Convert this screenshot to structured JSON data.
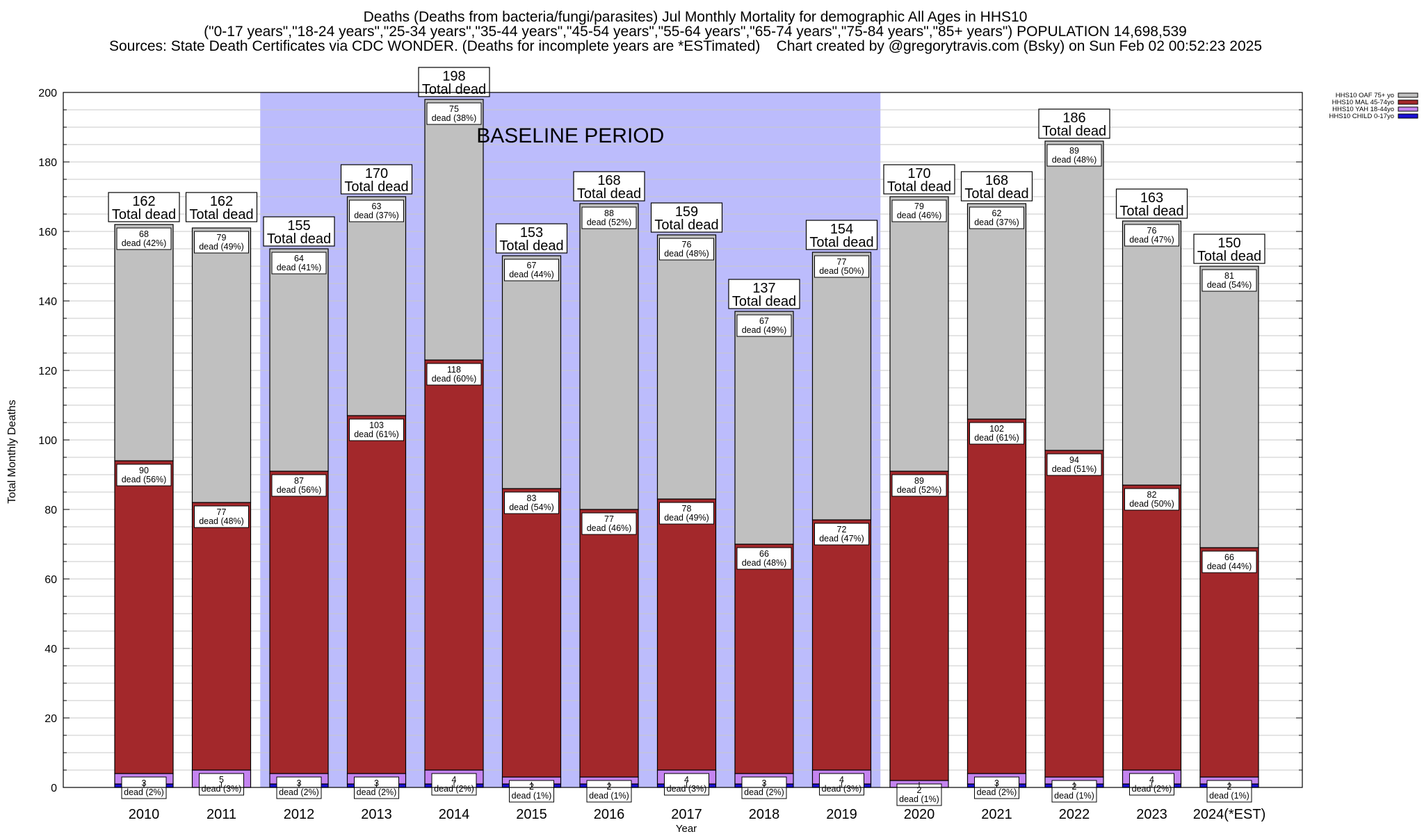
{
  "chart_data": {
    "type": "bar",
    "stacked": true,
    "title_lines": [
      "Deaths (Deaths from bacteria/fungi/parasites) Jul Monthly Mortality for demographic All Ages in HHS10",
      "(\"0-17 years\",\"18-24 years\",\"25-34 years\",\"35-44 years\",\"45-54 years\",\"55-64 years\",\"65-74 years\",\"75-84 years\",\"85+ years\") POPULATION 14,698,539",
      "Sources: State Death Certificates via CDC WONDER. (Deaths for incomplete years are *ESTimated)",
      "Chart created by @gregorytravis.com (Bsky) on Sun Feb 02 00:52:23 2025"
    ],
    "xlabel": "Year",
    "ylabel": "Total Monthly Deaths",
    "ylim": [
      0,
      200
    ],
    "y_ticks": [
      0,
      20,
      40,
      60,
      80,
      100,
      120,
      140,
      160,
      180,
      200
    ],
    "grid": true,
    "legend_position": "top-right",
    "baseline_label": "BASELINE PERIOD",
    "baseline_range": [
      "2012",
      "2019"
    ],
    "total_suffix": "Total dead",
    "segment_suffix": "dead",
    "categories": [
      "2010",
      "2011",
      "2012",
      "2013",
      "2014",
      "2015",
      "2016",
      "2017",
      "2018",
      "2019",
      "2020",
      "2021",
      "2022",
      "2023",
      "2024(*EST)"
    ],
    "totals": [
      162,
      162,
      155,
      170,
      198,
      153,
      168,
      159,
      137,
      154,
      170,
      168,
      186,
      163,
      150
    ],
    "series": [
      {
        "name": "HHS10 CHILD 0-17yo",
        "color": "#1a10d6",
        "values": [
          1,
          0,
          1,
          1,
          1,
          1,
          1,
          1,
          1,
          1,
          0,
          1,
          1,
          1,
          1
        ]
      },
      {
        "name": "HHS10 YAH 18-44yo",
        "color": "#c484f0",
        "values": [
          3,
          5,
          3,
          3,
          4,
          2,
          2,
          4,
          3,
          4,
          2,
          3,
          2,
          4,
          2
        ],
        "labels": [
          "3",
          "5",
          "3",
          "3",
          "4",
          "2",
          "2",
          "4",
          "3",
          "4",
          "2",
          "3",
          "2",
          "4",
          "2"
        ],
        "pct": [
          "(2%)",
          "(3%)",
          "(2%)",
          "(2%)",
          "(2%)",
          "(1%)",
          "(1%)",
          "(3%)",
          "(2%)",
          "(3%)",
          "(1%)",
          "(2%)",
          "(1%)",
          "(2%)",
          "(1%)"
        ]
      },
      {
        "name": "HHS10 MAL 45-74yo",
        "color": "#a3282b",
        "values": [
          90,
          77,
          87,
          103,
          118,
          83,
          77,
          78,
          66,
          72,
          89,
          102,
          94,
          82,
          66
        ],
        "pct": [
          "(56%)",
          "(48%)",
          "(56%)",
          "(61%)",
          "(60%)",
          "(54%)",
          "(46%)",
          "(49%)",
          "(48%)",
          "(47%)",
          "(52%)",
          "(61%)",
          "(51%)",
          "(50%)",
          "(44%)"
        ]
      },
      {
        "name": "HHS10 OAF 75+ yo",
        "color": "#c0c0c0",
        "values": [
          68,
          79,
          64,
          63,
          75,
          67,
          88,
          76,
          67,
          77,
          79,
          62,
          89,
          76,
          81
        ],
        "pct": [
          "(42%)",
          "(49%)",
          "(41%)",
          "(37%)",
          "(38%)",
          "(44%)",
          "(52%)",
          "(48%)",
          "(49%)",
          "(50%)",
          "(46%)",
          "(37%)",
          "(48%)",
          "(47%)",
          "(54%)"
        ]
      }
    ],
    "legend_order": [
      "HHS10 OAF 75+ yo",
      "HHS10 MAL 45-74yo",
      "HHS10 YAH 18-44yo",
      "HHS10 CHILD 0-17yo"
    ],
    "colors": {
      "baseline_band": "#bcbcfc",
      "grid": "#c8c8c8",
      "bar_outline": "#000000"
    }
  }
}
